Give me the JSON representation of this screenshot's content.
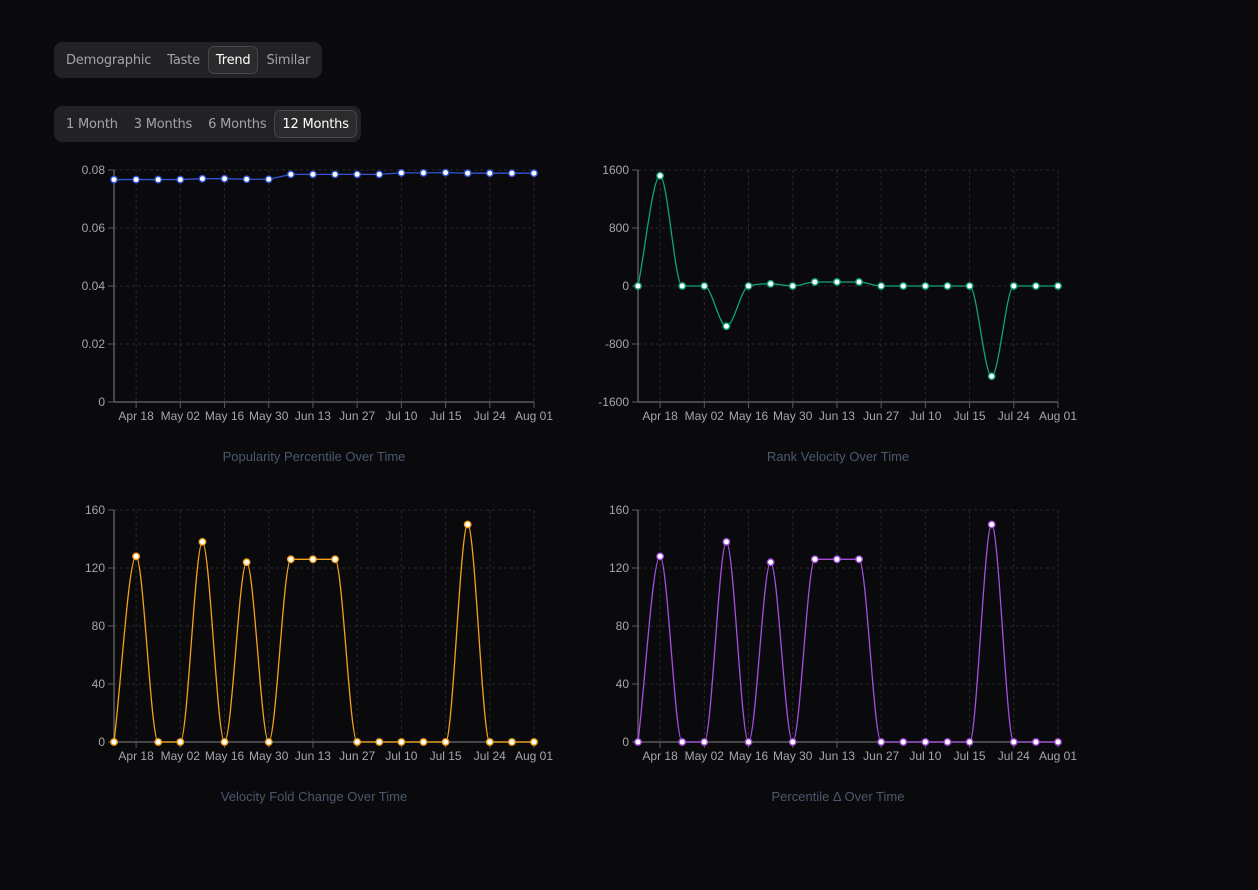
{
  "tabs": {
    "items": [
      {
        "label": "Demographic",
        "active": false
      },
      {
        "label": "Taste",
        "active": false
      },
      {
        "label": "Trend",
        "active": true
      },
      {
        "label": "Similar",
        "active": false
      }
    ]
  },
  "ranges": {
    "items": [
      {
        "label": "1 Month",
        "active": false
      },
      {
        "label": "3 Months",
        "active": false
      },
      {
        "label": "6 Months",
        "active": false
      },
      {
        "label": "12 Months",
        "active": true
      }
    ]
  },
  "chart_data": [
    {
      "id": "popularity",
      "type": "line",
      "title": "Popularity Percentile Over Time",
      "xlabel": "",
      "ylabel": "",
      "color": "#2f55d4",
      "curve": "linear",
      "ylim": [
        0,
        0.08
      ],
      "yticks": [
        0,
        0.02,
        0.04,
        0.06,
        0.08
      ],
      "ytick_labels": [
        "0",
        "0.02",
        "0.04",
        "0.06",
        "0.08"
      ],
      "xtick_labels": [
        "Apr 18",
        "May 02",
        "May 16",
        "May 30",
        "Jun 13",
        "Jun 27",
        "Jul 10",
        "Jul 15",
        "Jul 24",
        "Aug 01"
      ],
      "xtick_indices": [
        1,
        3,
        5,
        7,
        9,
        11,
        13,
        15,
        17,
        19
      ],
      "grid": true,
      "values": [
        0.0767,
        0.0767,
        0.0767,
        0.0767,
        0.077,
        0.077,
        0.0768,
        0.0768,
        0.0785,
        0.0785,
        0.0785,
        0.0785,
        0.0785,
        0.079,
        0.079,
        0.0791,
        0.0789,
        0.0789,
        0.0789,
        0.0789
      ]
    },
    {
      "id": "rank-velocity",
      "type": "line",
      "title": "Rank Velocity Over Time",
      "xlabel": "",
      "ylabel": "",
      "color": "#10a37a",
      "curve": "smooth",
      "ylim": [
        -1600,
        1600
      ],
      "yticks": [
        -1600,
        -800,
        0,
        800,
        1600
      ],
      "ytick_labels": [
        "-1600",
        "-800",
        "0",
        "800",
        "1600"
      ],
      "xtick_labels": [
        "Apr 18",
        "May 02",
        "May 16",
        "May 30",
        "Jun 13",
        "Jun 27",
        "Jul 10",
        "Jul 15",
        "Jul 24",
        "Aug 01"
      ],
      "xtick_indices": [
        1,
        3,
        5,
        7,
        9,
        11,
        13,
        15,
        17,
        19
      ],
      "grid": true,
      "values": [
        0,
        1520,
        0,
        0,
        -555,
        0,
        30,
        0,
        55,
        55,
        55,
        0,
        0,
        0,
        0,
        0,
        -1245,
        0,
        0,
        0
      ]
    },
    {
      "id": "fold-change",
      "type": "line",
      "title": "Velocity Fold Change Over Time",
      "xlabel": "",
      "ylabel": "",
      "color": "#f5a11c",
      "curve": "smooth",
      "ylim": [
        0,
        160
      ],
      "yticks": [
        0,
        40,
        80,
        120,
        160
      ],
      "ytick_labels": [
        "0",
        "40",
        "80",
        "120",
        "160"
      ],
      "xtick_labels": [
        "Apr 18",
        "May 02",
        "May 16",
        "May 30",
        "Jun 13",
        "Jun 27",
        "Jul 10",
        "Jul 15",
        "Jul 24",
        "Aug 01"
      ],
      "xtick_indices": [
        1,
        3,
        5,
        7,
        9,
        11,
        13,
        15,
        17,
        19
      ],
      "grid": true,
      "values": [
        0,
        128,
        0,
        0,
        138,
        0,
        124,
        0,
        126,
        126,
        126,
        0,
        0,
        0,
        0,
        0,
        150,
        0,
        0,
        0
      ]
    },
    {
      "id": "percentile-delta",
      "type": "line",
      "title": "Percentile Δ Over Time",
      "xlabel": "",
      "ylabel": "",
      "color": "#a54ee0",
      "curve": "smooth",
      "ylim": [
        0,
        160
      ],
      "yticks": [
        0,
        40,
        80,
        120,
        160
      ],
      "ytick_labels": [
        "0",
        "40",
        "80",
        "120",
        "160"
      ],
      "xtick_labels": [
        "Apr 18",
        "May 02",
        "May 16",
        "May 30",
        "Jun 13",
        "Jun 27",
        "Jul 10",
        "Jul 15",
        "Jul 24",
        "Aug 01"
      ],
      "xtick_indices": [
        1,
        3,
        5,
        7,
        9,
        11,
        13,
        15,
        17,
        19
      ],
      "grid": true,
      "values": [
        0,
        128,
        0,
        0,
        138,
        0,
        124,
        0,
        126,
        126,
        126,
        0,
        0,
        0,
        0,
        0,
        150,
        0,
        0,
        0
      ]
    }
  ]
}
